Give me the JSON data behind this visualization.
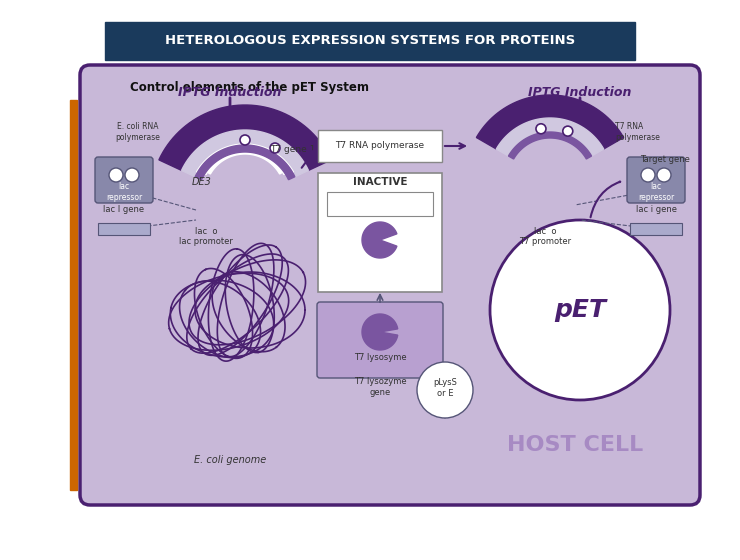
{
  "title": "HETEROLOGOUS EXPRESSION SYSTEMS FOR PROTEINS",
  "title_bg": "#1a3a5c",
  "title_color": "#ffffff",
  "subtitle": "Control elements of the pET System",
  "bg_color": "#ffffff",
  "main_box_color": "#c8b8d8",
  "main_box_border": "#4a2070",
  "orange_bar_color": "#cc6600",
  "left_label": "IPTG Induction",
  "right_label": "IPTG Induction",
  "host_cell_text": "HOST CELL",
  "pet_text": "pET",
  "inactive_text": "INACTIVE",
  "ecoli_genome_text": "E. coli genome",
  "de3_text": "DE3",
  "t7_rna_pol_text": "T7 RNA polymerase",
  "t7_gene1_text": "T7 gene 1",
  "lac_promoter_text": "lac promoter",
  "lac_o_left": "lac  o",
  "lac_o_right": "lac  o",
  "lac_repressor_left": "lac\nrepressor",
  "lac_repressor_right": "lac\nrepressor",
  "lac_i_gene_left": "lac I gene",
  "lac_i_gene_right": "lac i gene",
  "ecoli_rna_pol": "E. coli RNA\npolymerase",
  "t7_rna_pol_right": "T7 RNA\npolymerase",
  "t7_promoter": "T7 promoter",
  "target_gene": "Target gene",
  "t7_lysosyme": "T7 lysosyme",
  "t7_lysozyme_gene": "T7 lysozyme\ngene",
  "plyss_or_e": "pLysS\nor E",
  "purple_dark": "#4a2070",
  "purple_mid": "#7a55a0",
  "purple_light": "#b8a0d0",
  "gray_box": "#8888aa",
  "white": "#ffffff",
  "arrow_color": "#4a2070"
}
